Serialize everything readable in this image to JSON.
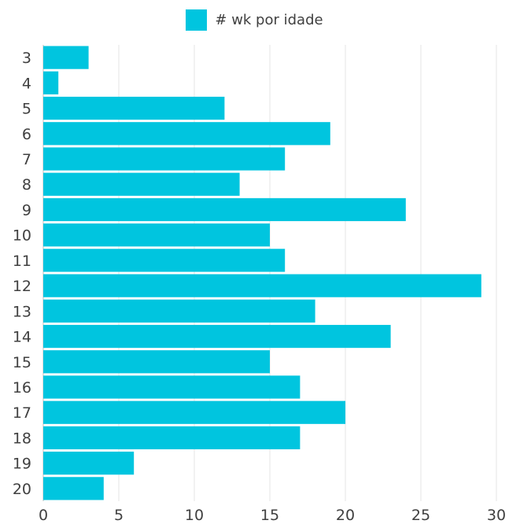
{
  "chart_data": {
    "type": "bar",
    "orientation": "horizontal",
    "legend": {
      "position": "top-center",
      "entries": [
        "# wk por idade"
      ]
    },
    "categories": [
      "3",
      "4",
      "5",
      "6",
      "7",
      "8",
      "9",
      "10",
      "11",
      "12",
      "13",
      "14",
      "15",
      "16",
      "17",
      "18",
      "19",
      "20"
    ],
    "series": [
      {
        "name": "# wk por idade",
        "color": "#00c5df",
        "values": [
          3,
          1,
          12,
          19,
          16,
          13,
          24,
          15,
          16,
          29,
          18,
          23,
          15,
          17,
          20,
          17,
          6,
          4
        ]
      }
    ],
    "x_axis": {
      "range": [
        0,
        30
      ],
      "ticks": [
        "0",
        "5",
        "10",
        "15",
        "20",
        "25",
        "30"
      ]
    },
    "grid": "vertical",
    "title": "",
    "xlabel": "",
    "ylabel": ""
  }
}
